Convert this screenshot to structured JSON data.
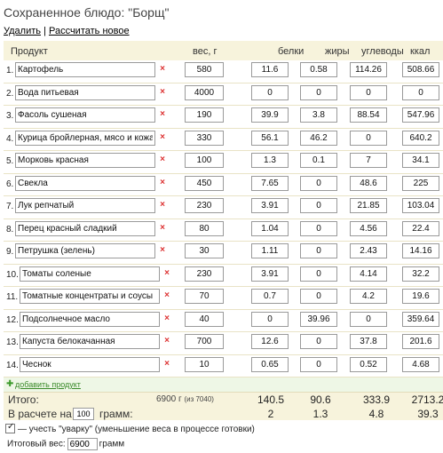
{
  "header": {
    "title": "Сохраненное блюдо: \"Борщ\"",
    "delete_label": "Удалить",
    "separator": "|",
    "recalc_label": "Рассчитать новое"
  },
  "table": {
    "columns": [
      "Продукт",
      "вес, г",
      "белки",
      "жиры",
      "углеводы",
      "ккал"
    ],
    "rows": [
      {
        "num": "1.",
        "name": "Картофель",
        "weight": "580",
        "protein": "11.6",
        "fat": "0.58",
        "carbs": "114.26",
        "kcal": "508.66"
      },
      {
        "num": "2.",
        "name": "Вода питьевая",
        "weight": "4000",
        "protein": "0",
        "fat": "0",
        "carbs": "0",
        "kcal": "0"
      },
      {
        "num": "3.",
        "name": "Фасоль сушеная",
        "weight": "190",
        "protein": "39.9",
        "fat": "3.8",
        "carbs": "88.54",
        "kcal": "547.96"
      },
      {
        "num": "4.",
        "name": "Курица бройлерная, мясо и кожа, с",
        "weight": "330",
        "protein": "56.1",
        "fat": "46.2",
        "carbs": "0",
        "kcal": "640.2"
      },
      {
        "num": "5.",
        "name": "Морковь красная",
        "weight": "100",
        "protein": "1.3",
        "fat": "0.1",
        "carbs": "7",
        "kcal": "34.1"
      },
      {
        "num": "6.",
        "name": "Свекла",
        "weight": "450",
        "protein": "7.65",
        "fat": "0",
        "carbs": "48.6",
        "kcal": "225"
      },
      {
        "num": "7.",
        "name": "Лук репчатый",
        "weight": "230",
        "protein": "3.91",
        "fat": "0",
        "carbs": "21.85",
        "kcal": "103.04"
      },
      {
        "num": "8.",
        "name": "Перец красный сладкий",
        "weight": "80",
        "protein": "1.04",
        "fat": "0",
        "carbs": "4.56",
        "kcal": "22.4"
      },
      {
        "num": "9.",
        "name": "Петрушка (зелень)",
        "weight": "30",
        "protein": "1.11",
        "fat": "0",
        "carbs": "2.43",
        "kcal": "14.16"
      },
      {
        "num": "10.",
        "name": "Томаты соленые",
        "weight": "230",
        "protein": "3.91",
        "fat": "0",
        "carbs": "4.14",
        "kcal": "32.2"
      },
      {
        "num": "11.",
        "name": "Томатные концентраты и соусы",
        "weight": "70",
        "protein": "0.7",
        "fat": "0",
        "carbs": "4.2",
        "kcal": "19.6"
      },
      {
        "num": "12.",
        "name": "Подсолнечное масло",
        "weight": "40",
        "protein": "0",
        "fat": "39.96",
        "carbs": "0",
        "kcal": "359.64"
      },
      {
        "num": "13.",
        "name": "Капуста белокачанная",
        "weight": "700",
        "protein": "12.6",
        "fat": "0",
        "carbs": "37.8",
        "kcal": "201.6"
      },
      {
        "num": "14.",
        "name": "Чеснок",
        "weight": "10",
        "protein": "0.65",
        "fat": "0",
        "carbs": "0.52",
        "kcal": "4.68"
      }
    ],
    "delete_icon": "×"
  },
  "add_product": {
    "label": "добавить продукт",
    "icon": "plus-icon"
  },
  "totals": {
    "label": "Итого:",
    "gross": "6900 г",
    "gross_note": "(из 7040)",
    "protein": "140.5",
    "fat": "90.6",
    "carbs": "333.9",
    "kcal": "2713.2"
  },
  "per": {
    "label_before": "В расчете на",
    "amount": "100",
    "label_after": "грамм:",
    "protein": "2",
    "fat": "1.3",
    "carbs": "4.8",
    "kcal": "39.3"
  },
  "boil": {
    "checked": true,
    "label": "— учесть \"уварку\" (уменьшение веса в процессе готовки)"
  },
  "final_weight": {
    "label": "Итоговый вес:",
    "value": "6900",
    "unit": "грамм"
  },
  "colors": {
    "header_bg": "#f7f3dc",
    "add_bg": "#eef7e6",
    "delete": "#dd3333"
  }
}
